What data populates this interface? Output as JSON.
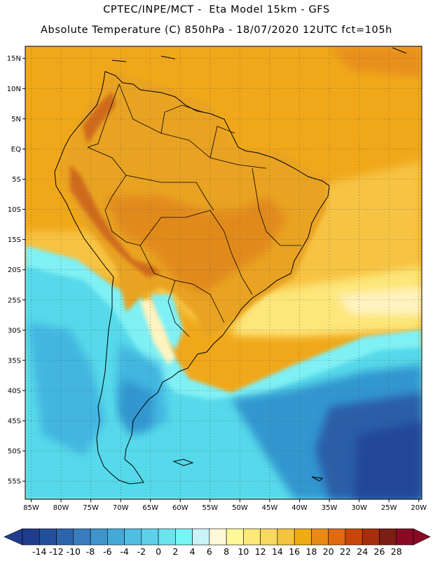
{
  "header": {
    "line1": "CPTEC/INPE/MCT -  Eta Model 15km - GFS",
    "line2": "Absolute Temperature (C) 850hPa - 18/07/2020 12UTC fct=105h"
  },
  "map": {
    "lon_range": [
      -86,
      -19.5
    ],
    "lat_range": [
      -58,
      17
    ],
    "gridlines": "dotted",
    "lat_ticks": [
      {
        "value": 15,
        "label": "15N"
      },
      {
        "value": 10,
        "label": "10N"
      },
      {
        "value": 5,
        "label": "5N"
      },
      {
        "value": 0,
        "label": "EQ"
      },
      {
        "value": -5,
        "label": "5S"
      },
      {
        "value": -10,
        "label": "10S"
      },
      {
        "value": -15,
        "label": "15S"
      },
      {
        "value": -20,
        "label": "20S"
      },
      {
        "value": -25,
        "label": "25S"
      },
      {
        "value": -30,
        "label": "30S"
      },
      {
        "value": -35,
        "label": "35S"
      },
      {
        "value": -40,
        "label": "40S"
      },
      {
        "value": -45,
        "label": "45S"
      },
      {
        "value": -50,
        "label": "50S"
      },
      {
        "value": -55,
        "label": "55S"
      }
    ],
    "lon_ticks": [
      {
        "value": -85,
        "label": "85W"
      },
      {
        "value": -80,
        "label": "80W"
      },
      {
        "value": -75,
        "label": "75W"
      },
      {
        "value": -70,
        "label": "70W"
      },
      {
        "value": -65,
        "label": "65W"
      },
      {
        "value": -60,
        "label": "60W"
      },
      {
        "value": -55,
        "label": "55W"
      },
      {
        "value": -50,
        "label": "50W"
      },
      {
        "value": -45,
        "label": "45W"
      },
      {
        "value": -40,
        "label": "40W"
      },
      {
        "value": -35,
        "label": "35W"
      },
      {
        "value": -30,
        "label": "30W"
      },
      {
        "value": -25,
        "label": "25W"
      },
      {
        "value": -20,
        "label": "20W"
      }
    ]
  },
  "colorbar": {
    "labels": [
      "-14",
      "-12",
      "-10",
      "-8",
      "-6",
      "-4",
      "-2",
      "0",
      "2",
      "4",
      "6",
      "8",
      "10",
      "12",
      "14",
      "16",
      "18",
      "20",
      "22",
      "24",
      "26",
      "28"
    ],
    "colors": [
      "#1f3d8c",
      "#23509c",
      "#2d65ad",
      "#3a7dbf",
      "#3f94cc",
      "#45a9d8",
      "#50bde3",
      "#5dd0ea",
      "#6ce3ef",
      "#76f5f5",
      "#c9f3f7",
      "#fff8d8",
      "#fff89a",
      "#fde87a",
      "#f8d860",
      "#f3c43d",
      "#eeac12",
      "#e88a16",
      "#e06a10",
      "#c8460a",
      "#a62e0c",
      "#7d1e14",
      "#8a0a26"
    ]
  },
  "regions": {
    "colors": {
      "ocean_n": "#f0a81a",
      "ocean_n_dark": "#e8901a",
      "land_warm": "#e9a324",
      "land_hot": "#e18a1c",
      "andes_hot": "#cf6a1c",
      "yellow": "#f7c342",
      "pale_yellow": "#fde67a",
      "cream": "#fff3c0",
      "cyan_light": "#7ff0f4",
      "cyan": "#56d9ea",
      "blue_mid": "#42b6e0",
      "blue_deep": "#3396cf",
      "navy": "#2a5ea8",
      "navy_dark": "#23479a",
      "land_line": "#000000"
    }
  }
}
